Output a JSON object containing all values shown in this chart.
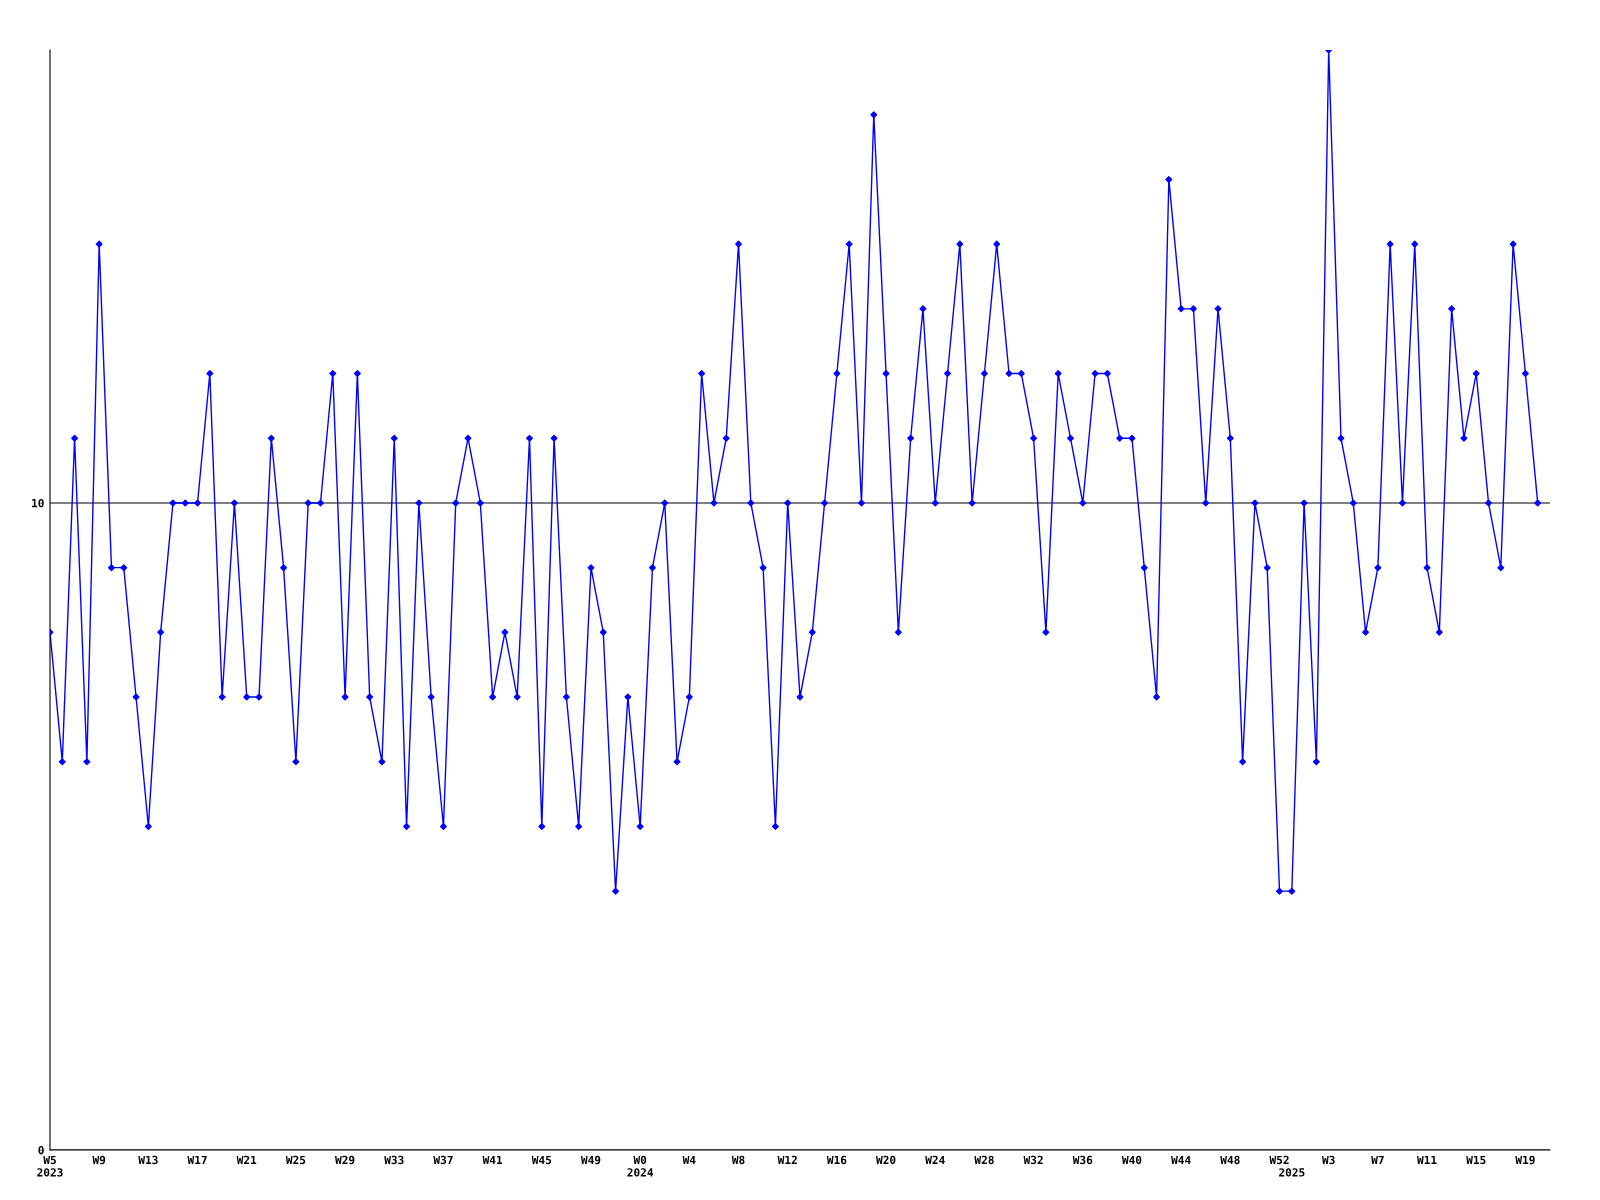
{
  "chart_data": {
    "type": "line",
    "categories": [
      "W5\n2023",
      null,
      null,
      null,
      "W9",
      null,
      null,
      null,
      "W13",
      null,
      null,
      null,
      "W17",
      null,
      null,
      null,
      "W21",
      null,
      null,
      null,
      "W25",
      null,
      null,
      null,
      "W29",
      null,
      null,
      null,
      "W33",
      null,
      null,
      null,
      "W37",
      null,
      null,
      null,
      "W41",
      null,
      null,
      null,
      "W45",
      null,
      null,
      null,
      "W49",
      null,
      null,
      null,
      "W0\n2024",
      null,
      null,
      null,
      "W4",
      null,
      null,
      null,
      "W8",
      null,
      null,
      null,
      "W12",
      null,
      null,
      null,
      "W16",
      null,
      null,
      null,
      "W20",
      null,
      null,
      null,
      "W24",
      null,
      null,
      null,
      "W28",
      null,
      null,
      null,
      "W32",
      null,
      null,
      null,
      "W36",
      null,
      null,
      null,
      "W40",
      null,
      null,
      null,
      "W44",
      null,
      null,
      null,
      "W48",
      null,
      null,
      null,
      "W52",
      "\n2025",
      null,
      null,
      "W3",
      null,
      null,
      null,
      "W7",
      null,
      null,
      null,
      "W11",
      null,
      null,
      null,
      "W15",
      null,
      null,
      null,
      "W19",
      null
    ],
    "series": [
      {
        "color": "#0000ff",
        "values": [
          8,
          6,
          11,
          6,
          14,
          9,
          9,
          7,
          5,
          8,
          10,
          10,
          10,
          12,
          7,
          10,
          7,
          7,
          11,
          9,
          6,
          10,
          10,
          12,
          7,
          12,
          7,
          6,
          11,
          5,
          10,
          7,
          5,
          10,
          11,
          10,
          7,
          8,
          7,
          11,
          5,
          11,
          7,
          5,
          9,
          8,
          4,
          7,
          5,
          9,
          10,
          6,
          7,
          12,
          10,
          11,
          14,
          10,
          9,
          5,
          10,
          7,
          8,
          10,
          12,
          14,
          10,
          16,
          12,
          8,
          11,
          13,
          10,
          12,
          14,
          10,
          12,
          14,
          12,
          12,
          11,
          8,
          12,
          11,
          10,
          12,
          12,
          11,
          11,
          9,
          7,
          15,
          13,
          13,
          10,
          13,
          11,
          6,
          10,
          9,
          4,
          4,
          10,
          6,
          17,
          11,
          10,
          8,
          9,
          14,
          10,
          14,
          9,
          8,
          13,
          11,
          12,
          10,
          9,
          14,
          12,
          10
        ]
      }
    ],
    "ylim": [
      0,
      17
    ],
    "yticks": [
      0,
      10
    ],
    "grid": "y",
    "marker": "diamond",
    "line_style": "solid",
    "legend": false
  }
}
